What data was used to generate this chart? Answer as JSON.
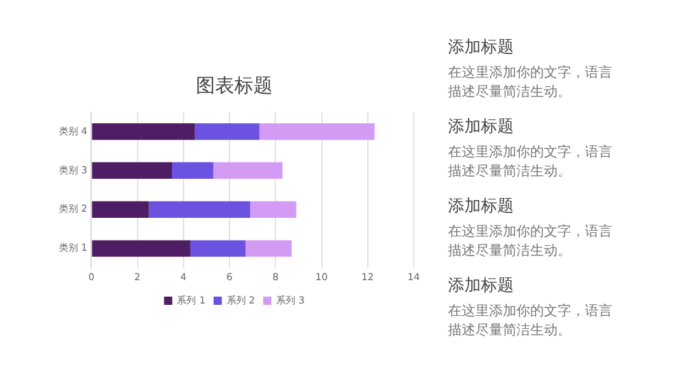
{
  "chart_data": {
    "type": "bar",
    "orientation": "horizontal",
    "stacked": true,
    "title": "图表标题",
    "categories": [
      "类别 4",
      "类别 3",
      "类别 2",
      "类别 1"
    ],
    "series": [
      {
        "name": "系列 1",
        "color": "#4f1d63",
        "values": [
          4.5,
          3.5,
          2.5,
          4.3
        ]
      },
      {
        "name": "系列 2",
        "color": "#6b52e0",
        "values": [
          2.8,
          1.8,
          4.4,
          2.4
        ]
      },
      {
        "name": "系列 3",
        "color": "#d49bf5",
        "values": [
          5,
          3,
          2,
          2
        ]
      }
    ],
    "xlim": [
      0,
      14
    ],
    "xticks": [
      0,
      2,
      4,
      6,
      8,
      10,
      12,
      14
    ],
    "grid": "x",
    "legend": "bottom",
    "annotations": [
      "添加标题",
      "在这里添加你的文字，语言描述尽量简洁生动。",
      "添加标题",
      "在这里添加你的文字，语言描述尽量简洁生动。",
      "添加标题",
      "在这里添加你的文字，语言描述尽量简洁生动。",
      "添加标题",
      "在这里添加你的文字，语言描述尽量简洁生动。"
    ]
  }
}
